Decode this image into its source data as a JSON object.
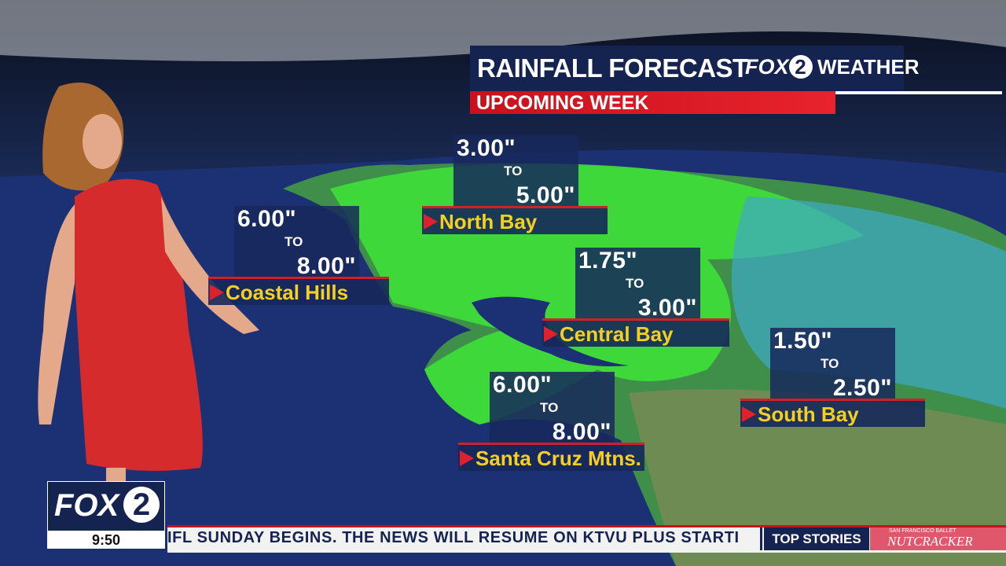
{
  "header": {
    "title": "RAINFALL FORECAST",
    "subtitle": "UPCOMING WEEK",
    "logo": {
      "brand": "FOX",
      "number": "2",
      "label": "WEATHER"
    }
  },
  "regions": [
    {
      "low": "6.00\"",
      "to": "TO",
      "high": "8.00\"",
      "name": "Coastal Hills"
    },
    {
      "low": "3.00\"",
      "to": "TO",
      "high": "5.00\"",
      "name": "North Bay"
    },
    {
      "low": "1.75\"",
      "to": "TO",
      "high": "3.00\"",
      "name": "Central Bay"
    },
    {
      "low": "1.50\"",
      "to": "TO",
      "high": "2.50\"",
      "name": "South Bay"
    },
    {
      "low": "6.00\"",
      "to": "TO",
      "high": "8.00\"",
      "name": "Santa Cruz Mtns."
    }
  ],
  "bug": {
    "brand": "FOX",
    "number": "2",
    "time": "9:50"
  },
  "ticker": {
    "text": "IFL SUNDAY BEGINS. THE NEWS WILL RESUME ON KTVU PLUS STARTI",
    "section": "TOP STORIES",
    "ad": {
      "small": "SAN FRANCISCO BALLET",
      "title": "NUTCRACKER"
    }
  }
}
